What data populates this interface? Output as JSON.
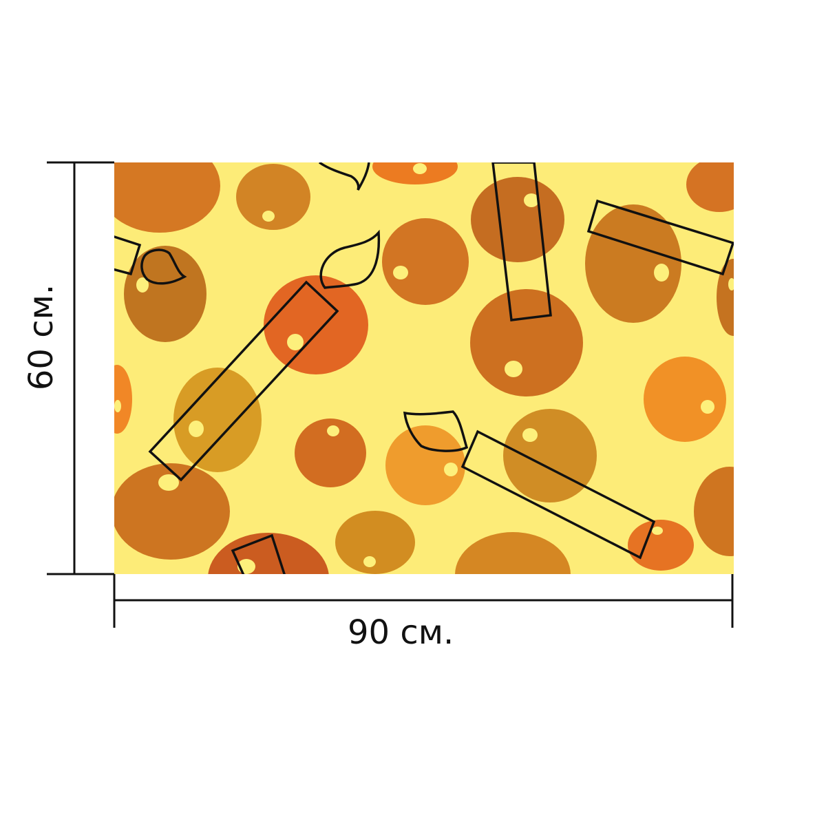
{
  "product": {
    "width_label": "90 см.",
    "height_label": "60 см."
  },
  "colors": {
    "background": "#ffffff",
    "print_background": "#fdec78",
    "dimension_line": "#111111",
    "outline": "#111111",
    "highlight": "#fdf07c"
  },
  "pattern": {
    "description_icon": "candle-and-bubble-pattern"
  }
}
